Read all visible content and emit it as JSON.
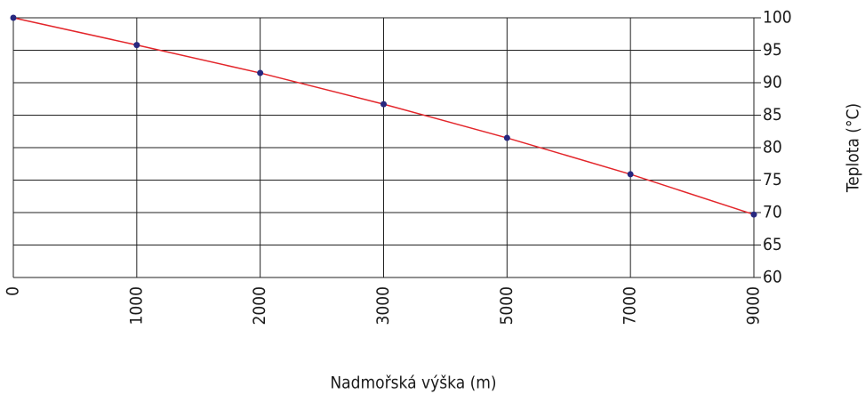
{
  "chart_data": {
    "type": "line",
    "x_label": "Nadmořská výška (m)",
    "y_label": "Teplota (°C)",
    "categories": [
      "0",
      "1000",
      "2000",
      "3000",
      "5000",
      "7000",
      "9000"
    ],
    "values": [
      100,
      95.8,
      91.5,
      86.7,
      81.5,
      75.9,
      69.7
    ],
    "color": "#e3262b",
    "marker_color": "#27287f",
    "ylim": [
      60,
      100
    ],
    "yticks": [
      60,
      65,
      70,
      75,
      80,
      85,
      90,
      95,
      100
    ],
    "y_axis_side": "right",
    "grid": true
  }
}
